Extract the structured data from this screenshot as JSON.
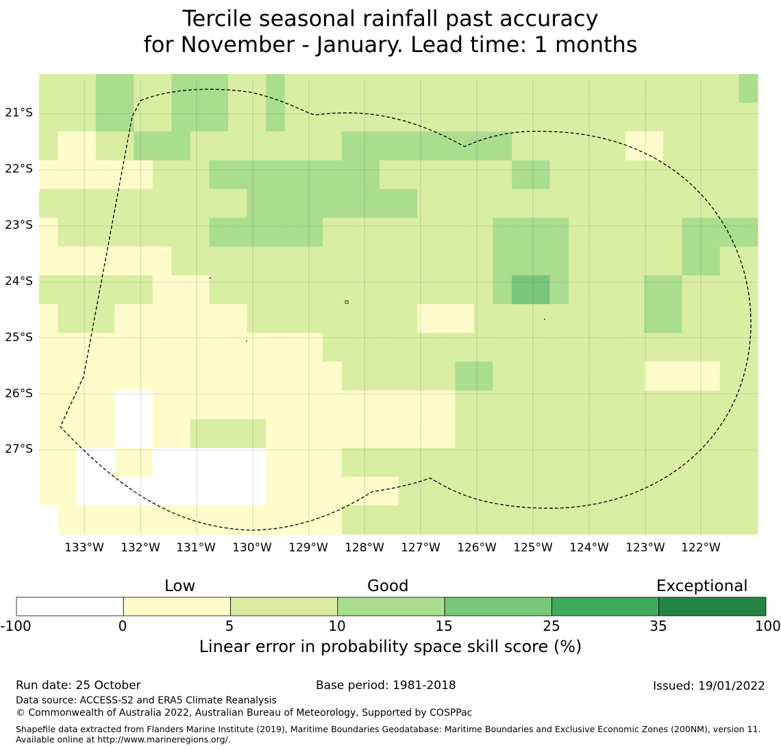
{
  "title": {
    "line1": "Tercile seasonal rainfall past accuracy",
    "line2": "for November - January. Lead time: 1 months"
  },
  "map": {
    "lon_labels": [
      "133°W",
      "132°W",
      "131°W",
      "130°W",
      "129°W",
      "128°W",
      "127°W",
      "126°W",
      "125°W",
      "124°W",
      "123°W",
      "122°W"
    ],
    "lat_labels": [
      "21°S",
      "22°S",
      "23°S",
      "24°S",
      "25°S",
      "26°S",
      "27°S"
    ],
    "grid_values": [
      [
        2,
        2,
        2,
        3,
        3,
        2,
        2,
        3,
        3,
        3,
        2,
        2,
        3,
        2,
        2,
        2,
        2,
        2,
        2,
        2,
        2,
        2,
        2,
        2,
        2,
        2,
        2,
        2,
        2,
        2,
        2,
        2,
        2,
        2,
        2,
        2,
        2,
        3
      ],
      [
        2,
        2,
        2,
        3,
        3,
        2,
        2,
        3,
        3,
        3,
        2,
        2,
        3,
        2,
        2,
        2,
        2,
        2,
        2,
        2,
        2,
        2,
        2,
        2,
        2,
        2,
        2,
        2,
        2,
        2,
        2,
        2,
        2,
        2,
        2,
        2,
        2,
        2
      ],
      [
        2,
        1,
        1,
        2,
        2,
        3,
        3,
        3,
        2,
        2,
        2,
        2,
        2,
        2,
        2,
        2,
        3,
        3,
        3,
        3,
        3,
        3,
        3,
        3,
        3,
        2,
        2,
        2,
        2,
        2,
        2,
        1,
        1,
        2,
        2,
        2,
        2,
        2
      ],
      [
        1,
        1,
        1,
        1,
        1,
        1,
        2,
        2,
        2,
        3,
        3,
        3,
        3,
        3,
        3,
        3,
        3,
        3,
        2,
        2,
        2,
        2,
        2,
        2,
        2,
        3,
        3,
        2,
        2,
        2,
        2,
        2,
        2,
        2,
        2,
        2,
        2,
        2
      ],
      [
        2,
        2,
        2,
        2,
        2,
        2,
        2,
        2,
        2,
        2,
        2,
        3,
        3,
        3,
        3,
        3,
        3,
        3,
        3,
        3,
        2,
        2,
        2,
        2,
        2,
        2,
        2,
        2,
        2,
        2,
        2,
        2,
        2,
        2,
        2,
        2,
        2,
        2
      ],
      [
        1,
        2,
        2,
        2,
        2,
        2,
        2,
        2,
        2,
        3,
        3,
        3,
        3,
        3,
        3,
        2,
        2,
        2,
        2,
        2,
        2,
        2,
        2,
        2,
        3,
        3,
        3,
        3,
        2,
        2,
        2,
        2,
        2,
        2,
        3,
        3,
        3,
        3
      ],
      [
        1,
        1,
        1,
        1,
        1,
        1,
        1,
        2,
        2,
        2,
        2,
        2,
        2,
        2,
        2,
        2,
        2,
        2,
        2,
        2,
        2,
        2,
        2,
        2,
        3,
        3,
        3,
        3,
        2,
        2,
        2,
        2,
        2,
        2,
        3,
        3,
        2,
        2
      ],
      [
        2,
        2,
        2,
        2,
        2,
        2,
        1,
        1,
        1,
        2,
        2,
        2,
        2,
        2,
        2,
        2,
        2,
        2,
        2,
        2,
        2,
        2,
        2,
        2,
        3,
        4,
        4,
        3,
        2,
        2,
        2,
        2,
        3,
        3,
        2,
        2,
        2,
        2
      ],
      [
        1,
        2,
        2,
        2,
        1,
        1,
        1,
        1,
        1,
        1,
        1,
        2,
        2,
        2,
        2,
        2,
        2,
        2,
        2,
        2,
        1,
        1,
        1,
        2,
        2,
        2,
        2,
        2,
        2,
        2,
        2,
        2,
        3,
        3,
        2,
        2,
        2,
        2
      ],
      [
        1,
        1,
        1,
        1,
        1,
        1,
        1,
        1,
        1,
        1,
        1,
        1,
        1,
        1,
        1,
        2,
        2,
        2,
        2,
        2,
        2,
        2,
        2,
        2,
        2,
        2,
        2,
        2,
        2,
        2,
        2,
        2,
        2,
        2,
        2,
        2,
        2,
        2
      ],
      [
        1,
        1,
        1,
        1,
        1,
        1,
        1,
        1,
        1,
        1,
        1,
        1,
        1,
        1,
        1,
        1,
        2,
        2,
        2,
        2,
        2,
        2,
        3,
        3,
        2,
        2,
        2,
        2,
        2,
        2,
        2,
        2,
        1,
        1,
        1,
        1,
        2,
        2
      ],
      [
        1,
        1,
        1,
        1,
        0,
        0,
        1,
        1,
        1,
        1,
        1,
        1,
        1,
        1,
        1,
        1,
        1,
        1,
        1,
        1,
        1,
        1,
        2,
        2,
        2,
        2,
        2,
        2,
        2,
        2,
        2,
        2,
        2,
        2,
        2,
        2,
        2,
        2
      ],
      [
        1,
        1,
        1,
        1,
        0,
        0,
        1,
        1,
        2,
        2,
        2,
        2,
        1,
        1,
        1,
        1,
        1,
        1,
        1,
        1,
        1,
        1,
        2,
        2,
        2,
        2,
        2,
        2,
        2,
        2,
        2,
        2,
        2,
        2,
        2,
        2,
        2,
        2
      ],
      [
        1,
        1,
        0,
        0,
        1,
        1,
        0,
        0,
        0,
        0,
        0,
        0,
        1,
        1,
        1,
        1,
        2,
        2,
        2,
        2,
        2,
        2,
        2,
        2,
        2,
        2,
        2,
        2,
        2,
        2,
        2,
        2,
        2,
        2,
        2,
        2,
        2,
        2
      ],
      [
        1,
        1,
        0,
        0,
        0,
        0,
        0,
        0,
        0,
        0,
        0,
        0,
        1,
        1,
        1,
        1,
        1,
        1,
        1,
        2,
        2,
        2,
        2,
        2,
        2,
        2,
        2,
        2,
        2,
        2,
        2,
        2,
        2,
        2,
        2,
        2,
        2,
        2
      ],
      [
        0,
        1,
        1,
        1,
        1,
        1,
        1,
        1,
        1,
        1,
        1,
        1,
        1,
        1,
        1,
        1,
        2,
        2,
        2,
        2,
        2,
        2,
        2,
        2,
        2,
        2,
        2,
        2,
        2,
        2,
        2,
        2,
        2,
        2,
        2,
        2,
        2,
        2
      ]
    ]
  },
  "colorbar": {
    "top_labels": [
      "Low",
      "Good",
      "Exceptional"
    ],
    "ticks": [
      "-100",
      "0",
      "5",
      "10",
      "15",
      "25",
      "35",
      "100"
    ],
    "colors": [
      "#ffffff",
      "#fefccb",
      "#d9eea3",
      "#abdd8e",
      "#78c679",
      "#41ab5d",
      "#238443"
    ],
    "label": "Linear error in probability space skill score (%)"
  },
  "footer": {
    "run_date": "Run date: 25 October",
    "base_period": "Base period: 1981-2018",
    "issued": "Issued: 19/01/2022",
    "data_source": "Data source: ACCESS-S2 and ERA5 Climate Reanalysis",
    "copyright": "© Commonwealth of Australia 2022, Australian Bureau of Meteorology, Supported by COSPPac",
    "shapefile": "Shapefile data extracted from Flanders Marine Institute (2019), Maritime Boundaries Geodatabase: Maritime Boundaries and Exclusive Economic Zones (200NM), version 11. Available online at http://www.marineregions.org/."
  }
}
